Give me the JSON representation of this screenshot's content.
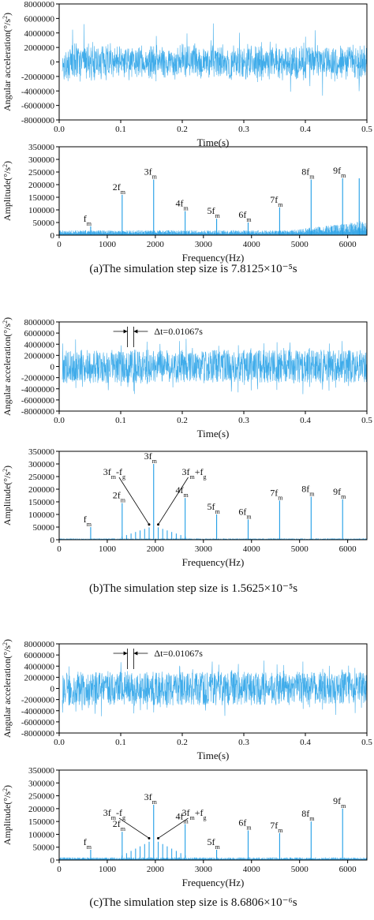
{
  "figure": {
    "captions": {
      "a": "(a)The simulation step size is 7.8125×10⁻⁵s",
      "b": "(b)The simulation step size is 1.5625×10⁻⁵s",
      "c": "(c)The simulation step size is 8.6806×10⁻⁶s"
    },
    "colors": {
      "signal": "#1f9de6",
      "axis": "#000000",
      "text": "#111111"
    }
  },
  "chart_data": [
    {
      "id": "a_time",
      "type": "line",
      "xlabel": "Time(s)",
      "ylabel": "Angular acceleration(°/s²)",
      "xlim": [
        0,
        0.5
      ],
      "ylim": [
        -8000000,
        8000000
      ],
      "xticks": [
        "0.0",
        "0.1",
        "0.2",
        "0.3",
        "0.4",
        "0.5"
      ],
      "yticks": [
        "-8000000",
        "-6000000",
        "-4000000",
        "-2000000",
        "0",
        "2000000",
        "4000000",
        "6000000",
        "8000000"
      ],
      "signal": {
        "kind": "noise",
        "amplitude": 2000000,
        "peak": 6000000
      }
    },
    {
      "id": "a_freq",
      "type": "line",
      "xlabel": "Frequency(Hz)",
      "ylabel": "Amplitude(°/s²)",
      "xlim": [
        0,
        6400
      ],
      "ylim": [
        0,
        350000
      ],
      "xticks": [
        "0",
        "1000",
        "2000",
        "3000",
        "4000",
        "5000",
        "6000"
      ],
      "yticks": [
        "0",
        "50000",
        "100000",
        "150000",
        "200000",
        "250000",
        "300000",
        "350000"
      ],
      "noise_floor": 15000,
      "peaks": [
        {
          "x": 655,
          "y": 35000,
          "label": "f",
          "sub": "m"
        },
        {
          "x": 1310,
          "y": 160000,
          "label": "2f",
          "sub": "m"
        },
        {
          "x": 1965,
          "y": 220000,
          "label": "3f",
          "sub": "m"
        },
        {
          "x": 2620,
          "y": 95000,
          "label": "4f",
          "sub": "m"
        },
        {
          "x": 3275,
          "y": 65000,
          "label": "5f",
          "sub": "m"
        },
        {
          "x": 3930,
          "y": 50000,
          "label": "6f",
          "sub": "m"
        },
        {
          "x": 4585,
          "y": 110000,
          "label": "7f",
          "sub": "m"
        },
        {
          "x": 5240,
          "y": 220000,
          "label": "8f",
          "sub": "m"
        },
        {
          "x": 5895,
          "y": 225000,
          "label": "9f",
          "sub": "m"
        },
        {
          "x": 6240,
          "y": 225000,
          "label": "",
          "sub": ""
        }
      ]
    },
    {
      "id": "b_time",
      "type": "line",
      "xlabel": "Time(s)",
      "ylabel": "Angular acceleration(°/s²)",
      "xlim": [
        0,
        0.5
      ],
      "ylim": [
        -8000000,
        8000000
      ],
      "xticks": [
        "0.0",
        "0.1",
        "0.2",
        "0.3",
        "0.4",
        "0.5"
      ],
      "yticks": [
        "-8000000",
        "-6000000",
        "-4000000",
        "-2000000",
        "0",
        "2000000",
        "4000000",
        "6000000",
        "8000000"
      ],
      "signal": {
        "kind": "periodic",
        "amplitude": 4000000,
        "period": 0.01067
      },
      "annotation": {
        "text": "Δt=0.01067s",
        "x1": 0.111,
        "x2": 0.121
      }
    },
    {
      "id": "b_freq",
      "type": "line",
      "xlabel": "Frequency(Hz)",
      "ylabel": "Amplitude(°/s²)",
      "xlim": [
        0,
        6400
      ],
      "ylim": [
        0,
        350000
      ],
      "xticks": [
        "0",
        "1000",
        "2000",
        "3000",
        "4000",
        "5000",
        "6000"
      ],
      "yticks": [
        "0",
        "50000",
        "100000",
        "150000",
        "200000",
        "250000",
        "300000",
        "350000"
      ],
      "noise_floor": 4000,
      "peaks": [
        {
          "x": 655,
          "y": 50000,
          "label": "f",
          "sub": "m"
        },
        {
          "x": 1310,
          "y": 145000,
          "label": "2f",
          "sub": "m"
        },
        {
          "x": 1965,
          "y": 300000,
          "label": "3f",
          "sub": "m"
        },
        {
          "x": 2620,
          "y": 165000,
          "label": "4f",
          "sub": "m"
        },
        {
          "x": 3275,
          "y": 100000,
          "label": "5f",
          "sub": "m"
        },
        {
          "x": 3930,
          "y": 80000,
          "label": "6f",
          "sub": "m"
        },
        {
          "x": 4585,
          "y": 155000,
          "label": "7f",
          "sub": "m"
        },
        {
          "x": 5240,
          "y": 170000,
          "label": "8f",
          "sub": "m"
        },
        {
          "x": 5895,
          "y": 160000,
          "label": "9f",
          "sub": "m"
        }
      ],
      "sidebands": {
        "center": 1965,
        "spacing": 94,
        "count": 7,
        "height": 55000
      },
      "arrows": [
        {
          "text": "3f",
          "sub": "m",
          "suffix": "-f",
          "suffix_sub": "g",
          "target_x": 1870,
          "target_y": 60000
        },
        {
          "text": "3f",
          "sub": "m",
          "suffix": "+f",
          "suffix_sub": "g",
          "target_x": 2060,
          "target_y": 60000
        }
      ]
    },
    {
      "id": "c_time",
      "type": "line",
      "xlabel": "Time(s)",
      "ylabel": "Angular acceleration(°/s²)",
      "xlim": [
        0,
        0.5
      ],
      "ylim": [
        -8000000,
        8000000
      ],
      "xticks": [
        "0.0",
        "0.1",
        "0.2",
        "0.3",
        "0.4",
        "0.5"
      ],
      "yticks": [
        "-8000000",
        "-6000000",
        "-4000000",
        "-2000000",
        "0",
        "2000000",
        "4000000",
        "6000000",
        "8000000"
      ],
      "signal": {
        "kind": "periodic",
        "amplitude": 4000000,
        "period": 0.01067
      },
      "annotation": {
        "text": "Δt=0.01067s",
        "x1": 0.111,
        "x2": 0.121
      }
    },
    {
      "id": "c_freq",
      "type": "line",
      "xlabel": "Frequency(Hz)",
      "ylabel": "Amplitude(°/s²)",
      "xlim": [
        0,
        6400
      ],
      "ylim": [
        0,
        350000
      ],
      "xticks": [
        "0",
        "1000",
        "2000",
        "3000",
        "4000",
        "5000",
        "6000"
      ],
      "yticks": [
        "0",
        "50000",
        "100000",
        "150000",
        "200000",
        "250000",
        "300000",
        "350000"
      ],
      "noise_floor": 8000,
      "peaks": [
        {
          "x": 655,
          "y": 40000,
          "label": "f",
          "sub": "m"
        },
        {
          "x": 1310,
          "y": 110000,
          "label": "2f",
          "sub": "m"
        },
        {
          "x": 1965,
          "y": 215000,
          "label": "3f",
          "sub": "m"
        },
        {
          "x": 2620,
          "y": 140000,
          "label": "4f",
          "sub": "m"
        },
        {
          "x": 3275,
          "y": 40000,
          "label": "5f",
          "sub": "m"
        },
        {
          "x": 3930,
          "y": 115000,
          "label": "6f",
          "sub": "m"
        },
        {
          "x": 4585,
          "y": 105000,
          "label": "7f",
          "sub": "m"
        },
        {
          "x": 5240,
          "y": 150000,
          "label": "8f",
          "sub": "m"
        },
        {
          "x": 5895,
          "y": 200000,
          "label": "9f",
          "sub": "m"
        }
      ],
      "sidebands": {
        "center": 1965,
        "spacing": 94,
        "count": 7,
        "height": 80000
      },
      "arrows": [
        {
          "text": "3f",
          "sub": "m",
          "suffix": "-f",
          "suffix_sub": "g",
          "target_x": 1870,
          "target_y": 85000
        },
        {
          "text": "3f",
          "sub": "m",
          "suffix": "+f",
          "suffix_sub": "g",
          "target_x": 2060,
          "target_y": 85000
        }
      ]
    }
  ]
}
